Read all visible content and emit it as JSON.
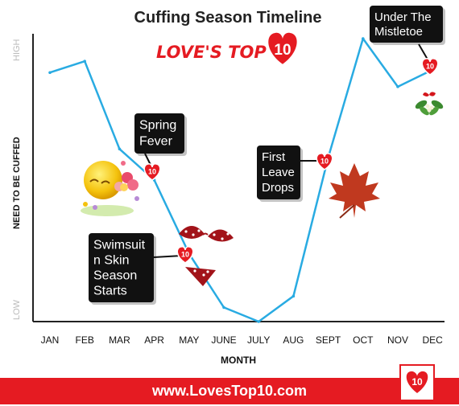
{
  "chart_data": {
    "type": "line",
    "title": "Cuffing Season Timeline",
    "xlabel": "MONTH",
    "ylabel": "NEED TO BE CUFFED",
    "ytick_high": "HIGH",
    "ytick_low": "LOW",
    "categories": [
      "JAN",
      "FEB",
      "MAR",
      "APR",
      "MAY",
      "JUNE",
      "JULY",
      "AUG",
      "SEPT",
      "OCT",
      "NOV",
      "DEC"
    ],
    "values": [
      88,
      92,
      61,
      50,
      24,
      5,
      0,
      9,
      58,
      100,
      83,
      89
    ],
    "ylim": [
      0,
      100
    ],
    "grid": false,
    "line_color": "#29abe2",
    "annotations": [
      {
        "text": "Under The\nMistletoe",
        "category": "DEC",
        "badge": "10"
      },
      {
        "text": "Spring\nFever",
        "category": "APR",
        "badge": "10"
      },
      {
        "text": "First\nLeave\nDrops",
        "category": "SEPT",
        "badge": "10"
      },
      {
        "text": "Swimsuit\nn Skin\nSeason\nStarts",
        "category": "MAY",
        "badge": "10"
      }
    ]
  },
  "branding": {
    "logo_text": "LOVE'S TOP",
    "logo_number": "10",
    "footer_url": "www.LovesTop10.com",
    "footer_badge": "10",
    "accent_color": "#e51b22"
  }
}
